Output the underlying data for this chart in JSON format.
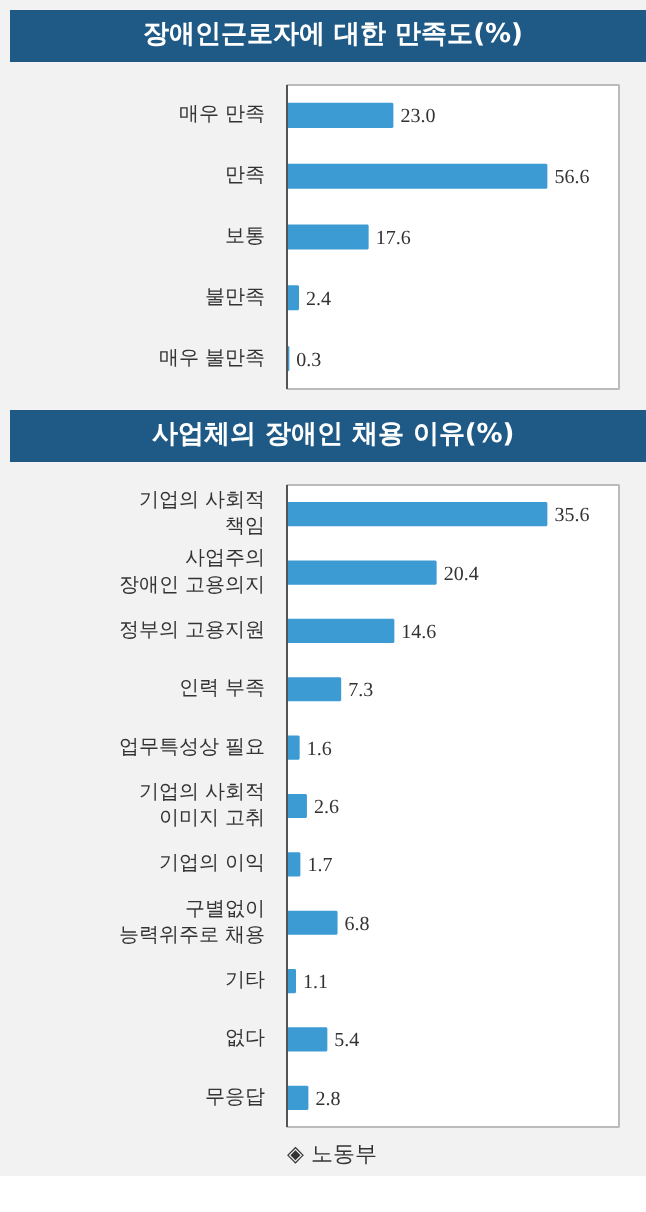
{
  "chart_data": [
    {
      "type": "bar",
      "orientation": "horizontal",
      "title": "장애인근로자에 대한 만족도(%)",
      "categories": [
        "매우 만족",
        "만족",
        "보통",
        "불만족",
        "매우 불만족"
      ],
      "values": [
        23.0,
        56.6,
        17.6,
        2.4,
        0.3
      ],
      "value_labels": [
        "23.0",
        "56.6",
        "17.6",
        "2.4",
        "0.3"
      ],
      "color": "#3d9bd4"
    },
    {
      "type": "bar",
      "orientation": "horizontal",
      "title": "사업체의 장애인 채용 이유(%)",
      "categories": [
        "기업의 사회적\n책임",
        "사업주의\n장애인 고용의지",
        "정부의 고용지원",
        "인력 부족",
        "업무특성상 필요",
        "기업의 사회적\n이미지 고취",
        "기업의 이익",
        "구별없이\n능력위주로 채용",
        "기타",
        "없다",
        "무응답"
      ],
      "values": [
        35.6,
        20.4,
        14.6,
        7.3,
        1.6,
        2.6,
        1.7,
        6.8,
        1.1,
        5.4,
        2.8
      ],
      "value_labels": [
        "35.6",
        "20.4",
        "14.6",
        "7.3",
        "1.6",
        "2.6",
        "1.7",
        "6.8",
        "1.1",
        "5.4",
        "2.8"
      ],
      "color": "#3d9bd4",
      "annotations": [
        "◈ 노동부"
      ]
    }
  ]
}
